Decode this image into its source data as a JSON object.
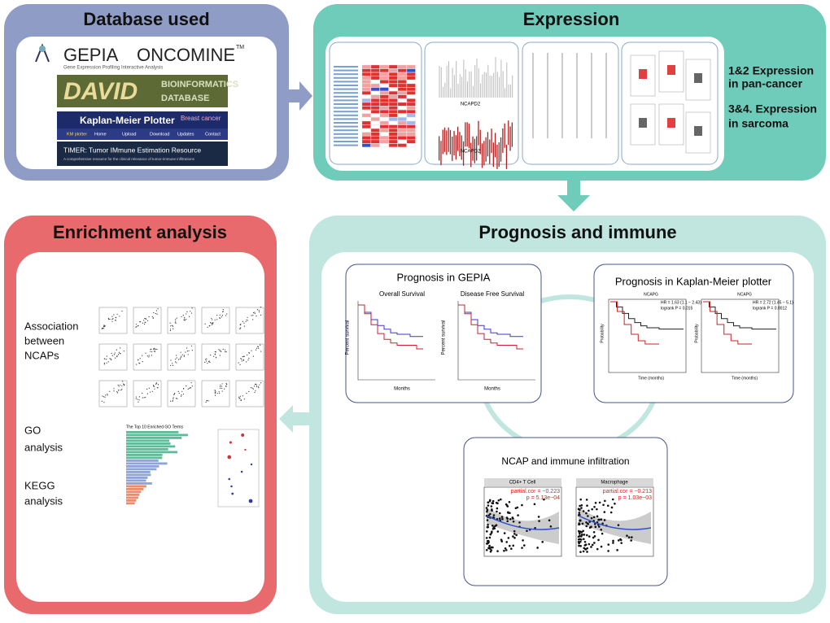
{
  "database_panel": {
    "title": "Database used",
    "gepia": "GEPIA",
    "gepia_subtitle": "Gene Expression Profiling Interactive Analysis",
    "oncomine": "ONCOMINE",
    "trademark": "TM",
    "david": "DAVID",
    "david_subtitle_1": "BIOINFORMATICS",
    "david_subtitle_2": "DATABASE",
    "kmplotter": "Kaplan-Meier Plotter",
    "kmplotter_badge": "Breast cancer",
    "kmplotter_menu": [
      "KM plotter",
      "Home",
      "Upload",
      "Download",
      "Updates",
      "Contact"
    ],
    "timer_title": "TIMER: Tumor IMmune Estimation Resource",
    "timer_subtitle": "A comprehensive resource for the clinical relevance of tumor-immune infiltrations"
  },
  "expression_panel": {
    "title": "Expression",
    "gene_labels": [
      "NCAPD2",
      "NCAPD2"
    ],
    "notes": [
      "1&2 Expression",
      "in pan-cancer",
      "3&4. Expression",
      "in sarcoma"
    ]
  },
  "enrichment_panel": {
    "title": "Enrichment analysis",
    "labels": [
      [
        "Association",
        "between",
        "NCAPs"
      ],
      [
        "GO",
        "analysis"
      ],
      [
        "KEGG",
        "analysis"
      ]
    ],
    "go_chart_title": "The Top 10 Enriched GO Terms"
  },
  "prognosis_panel": {
    "title": "Prognosis and immune",
    "gepia": {
      "title": "Prognosis in GEPIA",
      "plots": [
        "Overall Survival",
        "Disease Free Survival"
      ],
      "x_label": "Months",
      "y_label": "Percent survival"
    },
    "kmplotter": {
      "title": "Prognosis in Kaplan-Meier plotter",
      "genes": [
        "NCAPG",
        "NCAPG"
      ],
      "stats": [
        [
          "HR = 1.63 (1.1 − 2.43)",
          "logrank P = 0.015"
        ],
        [
          "HR = 2.72 (1.45 − 5.1)",
          "logrank P = 0.0012"
        ]
      ],
      "x_label": "Time (months)",
      "y_label": "Probability"
    },
    "immune": {
      "title": "NCAP and immune infiltration",
      "cells": [
        "CD4+ T Cell",
        "Macrophage"
      ],
      "stats": [
        [
          "partial.cor = −0.223",
          "p = 5.13e−04"
        ],
        [
          "partial.cor = −0.213",
          "p = 1.03e−03"
        ]
      ]
    }
  }
}
